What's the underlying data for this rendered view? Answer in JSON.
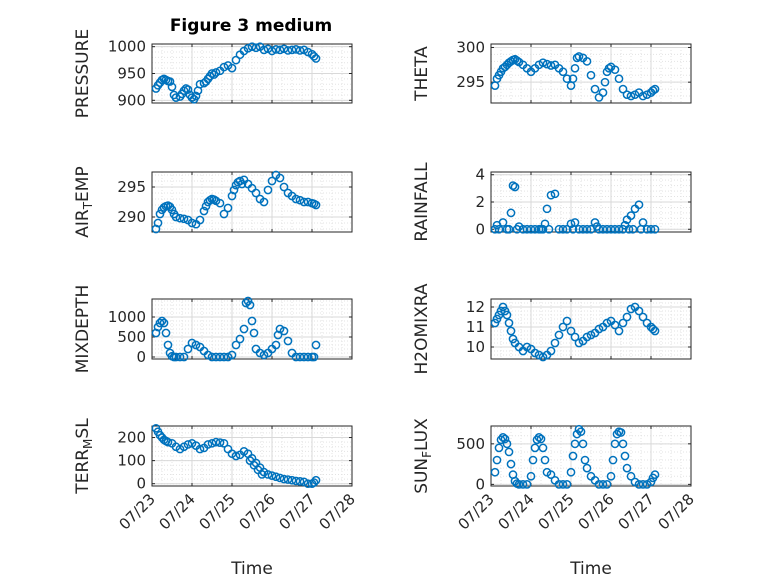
{
  "title": "Figure 3 medium",
  "colors": {
    "marker": "#0072BD",
    "axis": "#262626",
    "grid": "#d9d9d9"
  },
  "chart_data": [
    {
      "type": "scatter",
      "name": "pressure",
      "ylabel": "PRESSURE",
      "ysub": "",
      "ysuffix": "",
      "ylim": [
        895,
        1005
      ],
      "yticks": [
        900,
        950,
        1000
      ],
      "xlabel": "",
      "xticks": [
        "07/23",
        "07/24",
        "07/25",
        "07/26",
        "07/27",
        "07/28"
      ],
      "show_xticklabels": false,
      "x": [
        0.1,
        0.15,
        0.2,
        0.25,
        0.3,
        0.35,
        0.4,
        0.45,
        0.5,
        0.55,
        0.6,
        0.7,
        0.75,
        0.8,
        0.85,
        0.9,
        0.95,
        1.0,
        1.05,
        1.1,
        1.15,
        1.2,
        1.3,
        1.35,
        1.4,
        1.45,
        1.5,
        1.55,
        1.6,
        1.7,
        1.8,
        1.9,
        2.0,
        2.1,
        2.2,
        2.3,
        2.4,
        2.5,
        2.6,
        2.7,
        2.8,
        2.9,
        3.0,
        3.1,
        3.2,
        3.3,
        3.4,
        3.5,
        3.6,
        3.7,
        3.8,
        3.9,
        4.0,
        4.05,
        4.1
      ],
      "y": [
        922,
        928,
        933,
        938,
        940,
        938,
        936,
        935,
        925,
        910,
        905,
        907,
        912,
        918,
        922,
        920,
        910,
        905,
        902,
        908,
        918,
        930,
        932,
        935,
        940,
        945,
        950,
        948,
        952,
        955,
        962,
        965,
        960,
        975,
        985,
        992,
        997,
        1000,
        998,
        1000,
        994,
        996,
        992,
        995,
        994,
        996,
        993,
        994,
        995,
        993,
        994,
        990,
        986,
        982,
        978
      ]
    },
    {
      "type": "scatter",
      "name": "theta",
      "ylabel": "THETA",
      "ysub": "",
      "ysuffix": "",
      "ylim": [
        292,
        300.5
      ],
      "yticks": [
        295,
        300
      ],
      "xlabel": "",
      "xticks": [
        "07/23",
        "07/24",
        "07/25",
        "07/26",
        "07/27",
        "07/28"
      ],
      "show_xticklabels": false,
      "x": [
        0.1,
        0.15,
        0.2,
        0.25,
        0.3,
        0.35,
        0.4,
        0.45,
        0.5,
        0.55,
        0.6,
        0.65,
        0.7,
        0.8,
        0.9,
        1.0,
        1.1,
        1.2,
        1.3,
        1.4,
        1.5,
        1.6,
        1.7,
        1.8,
        1.9,
        2.0,
        2.05,
        2.1,
        2.15,
        2.2,
        2.3,
        2.4,
        2.5,
        2.6,
        2.7,
        2.8,
        2.85,
        2.9,
        2.95,
        3.0,
        3.1,
        3.2,
        3.3,
        3.4,
        3.5,
        3.6,
        3.7,
        3.8,
        3.9,
        4.0,
        4.05,
        4.1
      ],
      "y": [
        294.5,
        295.5,
        296,
        296.5,
        297,
        297.2,
        297.5,
        297.8,
        298,
        298.2,
        298.3,
        298.1,
        297.9,
        297.5,
        297,
        296.5,
        297,
        297.5,
        297.8,
        297.6,
        297.4,
        297.5,
        297,
        296.5,
        295.5,
        294.5,
        295.5,
        297,
        298.5,
        298.7,
        298.5,
        298,
        296,
        294,
        292.8,
        293.5,
        295,
        296.5,
        297,
        297.2,
        296.8,
        295.5,
        294,
        293.2,
        293,
        293.2,
        293.5,
        293,
        293.2,
        293.5,
        293.8,
        294
      ]
    },
    {
      "type": "scatter",
      "name": "air_temp",
      "ylabel": "AIR",
      "ysub": "T",
      "ysuffix": "EMP",
      "ylim": [
        287.5,
        297.5
      ],
      "yticks": [
        290,
        295
      ],
      "xlabel": "",
      "xticks": [
        "07/23",
        "07/24",
        "07/25",
        "07/26",
        "07/27",
        "07/28"
      ],
      "show_xticklabels": false,
      "x": [
        0.1,
        0.15,
        0.2,
        0.25,
        0.3,
        0.35,
        0.4,
        0.45,
        0.5,
        0.55,
        0.6,
        0.7,
        0.8,
        0.9,
        1.0,
        1.1,
        1.2,
        1.3,
        1.35,
        1.4,
        1.45,
        1.5,
        1.55,
        1.6,
        1.7,
        1.8,
        1.9,
        2.0,
        2.05,
        2.1,
        2.15,
        2.2,
        2.25,
        2.3,
        2.4,
        2.5,
        2.6,
        2.7,
        2.8,
        2.9,
        3.0,
        3.1,
        3.2,
        3.3,
        3.4,
        3.5,
        3.6,
        3.7,
        3.8,
        3.9,
        4.0,
        4.05,
        4.1
      ],
      "y": [
        288,
        289,
        290.5,
        291.2,
        291.6,
        291.8,
        291.9,
        291.7,
        291.2,
        290.5,
        290,
        289.8,
        289.7,
        289.5,
        289,
        288.8,
        289.5,
        291,
        291.8,
        292.5,
        292.8,
        293,
        292.9,
        292.7,
        292.3,
        290.5,
        291.5,
        293.5,
        294.5,
        295.3,
        295.8,
        296,
        295.5,
        296.2,
        295.5,
        294.8,
        294,
        293,
        292.5,
        294.5,
        296,
        297,
        296.5,
        295,
        294,
        293.5,
        293,
        292.8,
        292.5,
        292.5,
        292.3,
        292.2,
        292
      ]
    },
    {
      "type": "scatter",
      "name": "rainfall",
      "ylabel": "RAINFALL",
      "ysub": "",
      "ysuffix": "",
      "ylim": [
        -0.2,
        4.2
      ],
      "yticks": [
        0,
        2,
        4
      ],
      "xlabel": "",
      "xticks": [
        "07/23",
        "07/24",
        "07/25",
        "07/26",
        "07/27",
        "07/28"
      ],
      "show_xticklabels": false,
      "x": [
        0.1,
        0.2,
        0.3,
        0.4,
        0.5,
        0.55,
        0.6,
        0.65,
        0.7,
        0.8,
        0.9,
        1.0,
        1.1,
        1.2,
        1.3,
        1.4,
        1.45,
        1.5,
        1.6,
        1.7,
        1.8,
        1.9,
        2.0,
        2.1,
        2.2,
        2.3,
        2.4,
        2.5,
        2.6,
        2.7,
        2.8,
        2.9,
        3.0,
        3.1,
        3.2,
        3.3,
        3.35,
        3.4,
        3.5,
        3.6,
        3.7,
        3.8,
        3.9,
        4.0,
        4.1,
        0.15,
        0.45,
        1.35,
        1.25,
        2.05,
        2.65,
        3.45,
        3.55,
        3.75
      ],
      "y": [
        0,
        0,
        0.5,
        0,
        1.2,
        3.2,
        3.1,
        0,
        0.2,
        0,
        0,
        0,
        0,
        0,
        0,
        1.5,
        0,
        2.5,
        2.6,
        0,
        0,
        0,
        0.4,
        0.5,
        0,
        0,
        0,
        0,
        0.5,
        0,
        0,
        0,
        0,
        0,
        0,
        0,
        0.3,
        0.7,
        1.0,
        1.5,
        1.8,
        0.5,
        0,
        0,
        0,
        0.3,
        0,
        0.4,
        0,
        0,
        0.2,
        0,
        0,
        0
      ]
    },
    {
      "type": "scatter",
      "name": "mixdepth",
      "ylabel": "MIXDEPTH",
      "ysub": "",
      "ysuffix": "",
      "ylim": [
        -50,
        1450
      ],
      "yticks": [
        0,
        500,
        1000
      ],
      "xlabel": "",
      "xticks": [
        "07/23",
        "07/24",
        "07/25",
        "07/26",
        "07/27",
        "07/28"
      ],
      "show_xticklabels": false,
      "x": [
        0.1,
        0.15,
        0.2,
        0.25,
        0.3,
        0.35,
        0.4,
        0.45,
        0.5,
        0.55,
        0.6,
        0.7,
        0.8,
        0.9,
        1.0,
        1.1,
        1.2,
        1.3,
        1.4,
        1.5,
        1.6,
        1.7,
        1.8,
        1.9,
        2.0,
        2.1,
        2.2,
        2.3,
        2.35,
        2.4,
        2.45,
        2.5,
        2.55,
        2.6,
        2.7,
        2.8,
        2.9,
        3.0,
        3.1,
        3.15,
        3.2,
        3.3,
        3.4,
        3.5,
        3.6,
        3.7,
        3.8,
        3.9,
        4.0,
        4.05,
        4.1
      ],
      "y": [
        600,
        750,
        850,
        900,
        850,
        600,
        300,
        100,
        20,
        0,
        0,
        0,
        0,
        200,
        350,
        300,
        250,
        150,
        50,
        0,
        0,
        0,
        0,
        0,
        50,
        300,
        450,
        700,
        1350,
        1400,
        1300,
        900,
        600,
        200,
        100,
        50,
        100,
        200,
        300,
        550,
        700,
        650,
        400,
        100,
        0,
        0,
        0,
        0,
        0,
        0,
        300
      ]
    },
    {
      "type": "scatter",
      "name": "h2omixra",
      "ylabel": "H2OMIXRA",
      "ysub": "",
      "ysuffix": "",
      "ylim": [
        9.4,
        12.4
      ],
      "yticks": [
        10,
        11,
        12
      ],
      "xlabel": "",
      "xticks": [
        "07/23",
        "07/24",
        "07/25",
        "07/26",
        "07/27",
        "07/28"
      ],
      "show_xticklabels": false,
      "x": [
        0.1,
        0.15,
        0.2,
        0.25,
        0.3,
        0.35,
        0.4,
        0.45,
        0.5,
        0.55,
        0.6,
        0.7,
        0.8,
        0.9,
        1.0,
        1.1,
        1.2,
        1.3,
        1.4,
        1.5,
        1.6,
        1.7,
        1.8,
        1.9,
        2.0,
        2.1,
        2.2,
        2.3,
        2.4,
        2.5,
        2.6,
        2.7,
        2.8,
        2.9,
        3.0,
        3.1,
        3.2,
        3.3,
        3.4,
        3.5,
        3.6,
        3.7,
        3.8,
        3.9,
        4.0,
        4.05,
        4.1
      ],
      "y": [
        11.2,
        11.4,
        11.6,
        11.8,
        12.0,
        11.8,
        11.6,
        11.2,
        10.8,
        10.4,
        10.2,
        10.0,
        9.8,
        10.0,
        9.9,
        9.7,
        9.6,
        9.5,
        9.6,
        9.8,
        10.2,
        10.6,
        11.0,
        11.3,
        10.8,
        10.5,
        10.2,
        10.3,
        10.5,
        10.6,
        10.7,
        10.9,
        11.0,
        11.2,
        11.3,
        11.1,
        10.8,
        11.2,
        11.5,
        11.9,
        12.0,
        11.8,
        11.5,
        11.2,
        11.0,
        10.9,
        10.8
      ]
    },
    {
      "type": "scatter",
      "name": "terr_msl",
      "ylabel": "TERR",
      "ysub": "M",
      "ysuffix": "SL",
      "ylim": [
        -10,
        250
      ],
      "yticks": [
        0,
        100,
        200
      ],
      "xlabel": "Time",
      "xticks": [
        "07/23",
        "07/24",
        "07/25",
        "07/26",
        "07/27",
        "07/28"
      ],
      "show_xticklabels": true,
      "x": [
        0.1,
        0.15,
        0.2,
        0.25,
        0.3,
        0.35,
        0.4,
        0.5,
        0.6,
        0.7,
        0.8,
        0.9,
        1.0,
        1.1,
        1.2,
        1.3,
        1.4,
        1.5,
        1.6,
        1.7,
        1.8,
        1.9,
        2.0,
        2.1,
        2.2,
        2.3,
        2.4,
        2.5,
        2.6,
        2.7,
        2.8,
        2.9,
        3.0,
        3.1,
        3.2,
        3.3,
        3.4,
        3.5,
        3.6,
        3.7,
        3.8,
        3.9,
        4.0,
        4.05,
        4.1,
        2.45,
        2.55,
        2.65,
        2.75
      ],
      "y": [
        240,
        225,
        210,
        200,
        190,
        185,
        180,
        175,
        160,
        150,
        160,
        170,
        175,
        165,
        150,
        155,
        170,
        175,
        180,
        178,
        175,
        150,
        130,
        120,
        125,
        140,
        130,
        110,
        90,
        70,
        50,
        40,
        35,
        30,
        25,
        20,
        18,
        15,
        12,
        10,
        8,
        0,
        0,
        5,
        15,
        100,
        80,
        60,
        40
      ]
    },
    {
      "type": "scatter",
      "name": "sun_flux",
      "ylabel": "SUN",
      "ysub": "F",
      "ysuffix": "LUX",
      "ylim": [
        -20,
        720
      ],
      "yticks": [
        0,
        500
      ],
      "xlabel": "Time",
      "xticks": [
        "07/23",
        "07/24",
        "07/25",
        "07/26",
        "07/27",
        "07/28"
      ],
      "show_xticklabels": true,
      "x": [
        0.1,
        0.15,
        0.2,
        0.25,
        0.3,
        0.35,
        0.4,
        0.45,
        0.5,
        0.55,
        0.6,
        0.65,
        0.7,
        0.8,
        0.9,
        1.0,
        1.05,
        1.1,
        1.15,
        1.2,
        1.25,
        1.3,
        1.35,
        1.4,
        1.5,
        1.6,
        1.7,
        1.8,
        1.9,
        2.0,
        2.05,
        2.1,
        2.15,
        2.2,
        2.25,
        2.3,
        2.35,
        2.4,
        2.5,
        2.6,
        2.7,
        2.8,
        2.9,
        3.0,
        3.05,
        3.1,
        3.15,
        3.2,
        3.25,
        3.3,
        3.35,
        3.4,
        3.5,
        3.6,
        3.7,
        3.8,
        3.9,
        4.0,
        4.05,
        4.1
      ],
      "y": [
        150,
        300,
        450,
        550,
        580,
        560,
        500,
        400,
        250,
        120,
        40,
        10,
        0,
        0,
        0,
        100,
        300,
        450,
        550,
        580,
        560,
        450,
        300,
        150,
        120,
        50,
        0,
        0,
        0,
        150,
        350,
        500,
        620,
        680,
        650,
        500,
        300,
        200,
        100,
        50,
        0,
        0,
        0,
        100,
        300,
        500,
        620,
        650,
        640,
        500,
        350,
        200,
        100,
        30,
        0,
        0,
        0,
        30,
        80,
        120
      ]
    }
  ]
}
